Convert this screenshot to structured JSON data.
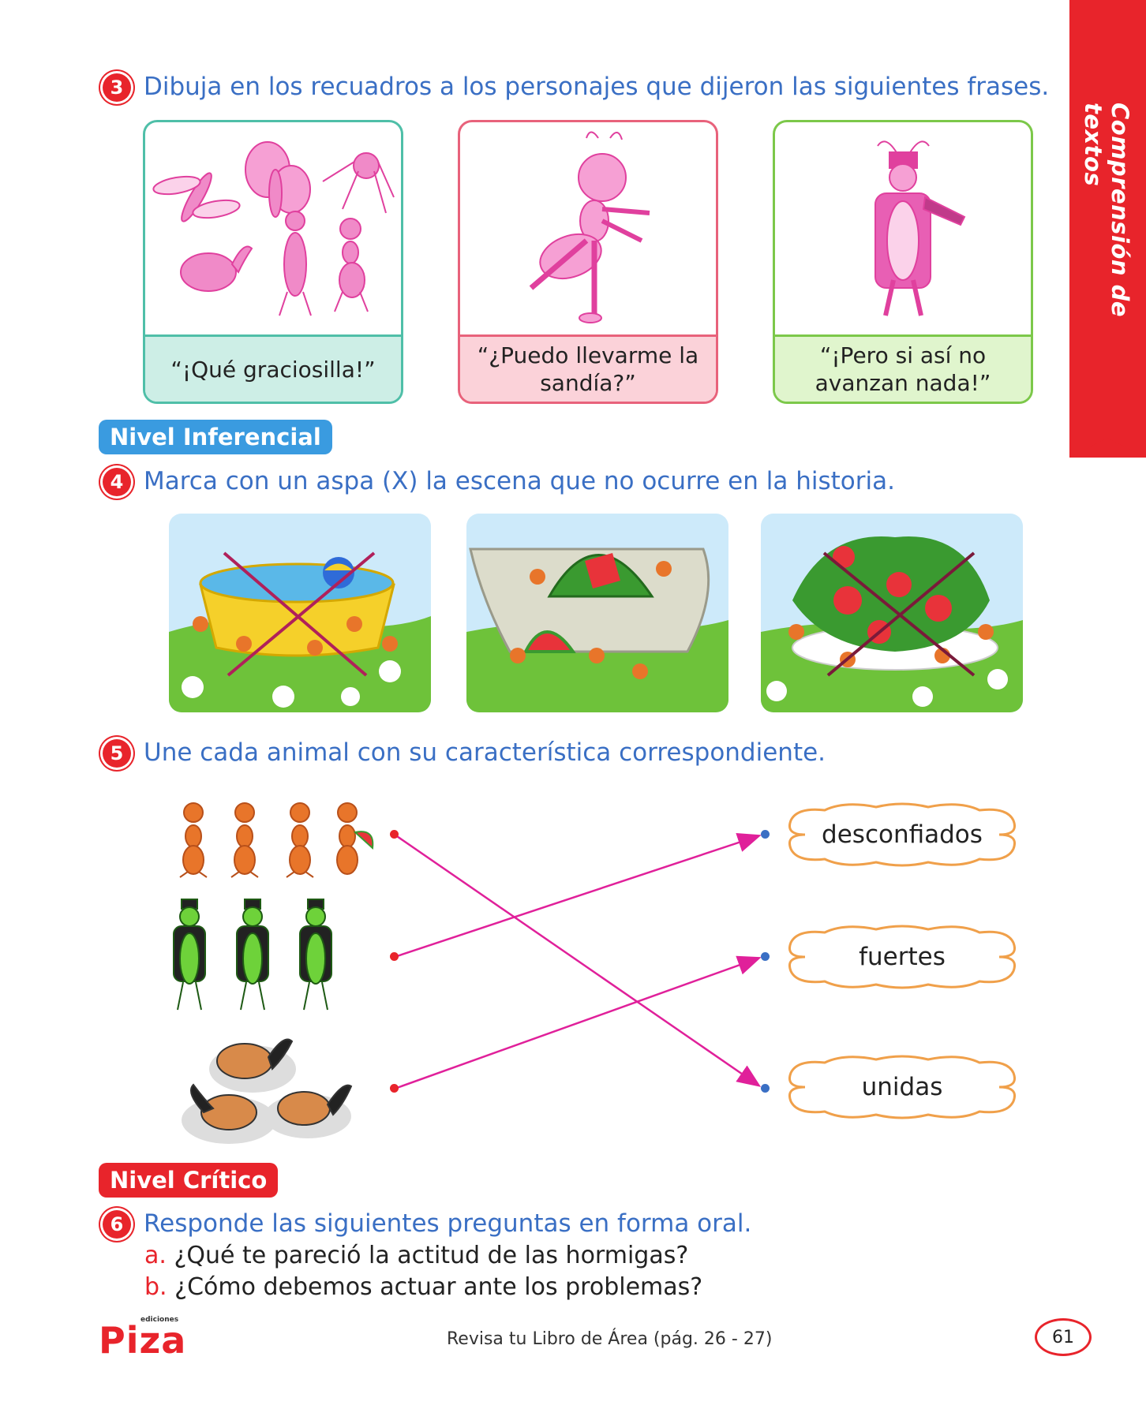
{
  "sidebar": {
    "label": "Comprensión de textos"
  },
  "q3": {
    "number": "3",
    "text": "Dibuja en los recuadros a los personajes que dijeron las siguientes frases.",
    "cards": [
      {
        "caption": "“¡Qué graciosilla!”",
        "border": "#4fbfa8",
        "fill": "#cdeee6"
      },
      {
        "caption": "“¿Puedo llevarme la sandía?”",
        "border": "#e8627b",
        "fill": "#fbd2d9"
      },
      {
        "caption": "“¡Pero si así no avanzan nada!”",
        "border": "#7cc84a",
        "fill": "#e0f5cd"
      }
    ]
  },
  "level_inferencial": {
    "label": "Nivel Inferencial",
    "color": "#3a9be0"
  },
  "q4": {
    "number": "4",
    "text": "Marca con un aspa (X) la escena que no ocurre en la historia."
  },
  "q5": {
    "number": "5",
    "text": "Une cada animal con su característica correspondiente.",
    "words": [
      "desconfiados",
      "fuertes",
      "unidas"
    ]
  },
  "level_critico": {
    "label": "Nivel Crítico",
    "color": "#e8242b"
  },
  "q6": {
    "number": "6",
    "text": "Responde las siguientes preguntas en forma oral.",
    "items": [
      {
        "letter": "a.",
        "text": "¿Qué te pareció la actitud de las hormigas?"
      },
      {
        "letter": "b.",
        "text": "¿Cómo debemos actuar ante los problemas?"
      }
    ]
  },
  "footer": {
    "brand_small": "ediciones",
    "brand": "Piza",
    "reference": "Revisa tu Libro de Área (pág. 26 - 27)",
    "page": "61"
  }
}
